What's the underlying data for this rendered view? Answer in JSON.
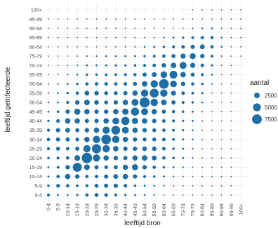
{
  "chart_data": {
    "type": "scatter",
    "title": "",
    "xlabel": "leeftijd bron",
    "ylabel": "leeftijd geïnfecteerde",
    "categories": [
      "0-4",
      "5-9",
      "10-14",
      "15-19",
      "20-24",
      "25-29",
      "30-34",
      "35-39",
      "40-44",
      "45-49",
      "50-54",
      "55-59",
      "60-64",
      "65-69",
      "70-74",
      "75-79",
      "80-84",
      "85-89",
      "90-94",
      "95-99",
      "100+"
    ],
    "grid": true,
    "legend": {
      "title": "aantal",
      "placement": "right",
      "entries": [
        {
          "label": "2500",
          "value": 2500
        },
        {
          "label": "5000",
          "value": 5000
        },
        {
          "label": "7500",
          "value": 7500
        }
      ]
    },
    "point_color": "#1f6fa5",
    "size_max_value": 9000,
    "matrix_note_omitted": false,
    "matrix": [
      [
        700,
        300,
        250,
        400,
        900,
        1300,
        1100,
        700,
        400,
        300,
        250,
        200,
        150,
        100,
        80,
        60,
        40,
        20,
        10,
        5,
        0
      ],
      [
        500,
        1100,
        900,
        600,
        700,
        1200,
        1400,
        1500,
        1100,
        500,
        300,
        250,
        200,
        150,
        100,
        70,
        50,
        20,
        10,
        5,
        0
      ],
      [
        300,
        900,
        2300,
        1600,
        900,
        1000,
        1400,
        1800,
        2300,
        1500,
        700,
        450,
        300,
        200,
        140,
        100,
        60,
        25,
        10,
        5,
        0
      ],
      [
        300,
        600,
        1600,
        6500,
        2600,
        1400,
        1100,
        1300,
        2200,
        3000,
        1600,
        900,
        500,
        300,
        200,
        150,
        90,
        40,
        15,
        5,
        0
      ],
      [
        500,
        700,
        900,
        2600,
        8500,
        4200,
        2300,
        1600,
        1400,
        2300,
        2500,
        1800,
        900,
        500,
        300,
        200,
        100,
        50,
        20,
        5,
        0
      ],
      [
        700,
        1200,
        1000,
        1400,
        4200,
        6800,
        4300,
        2300,
        1500,
        1500,
        1700,
        1600,
        1000,
        500,
        300,
        200,
        120,
        60,
        20,
        5,
        0
      ],
      [
        900,
        1400,
        1400,
        1100,
        2300,
        4300,
        7400,
        4300,
        2300,
        1500,
        1200,
        1200,
        1000,
        600,
        350,
        250,
        150,
        70,
        25,
        10,
        0
      ],
      [
        700,
        1500,
        1800,
        1300,
        1600,
        2300,
        4300,
        6100,
        3700,
        2300,
        1500,
        1200,
        900,
        600,
        400,
        250,
        150,
        70,
        25,
        10,
        0
      ],
      [
        400,
        1100,
        2300,
        2200,
        1400,
        1500,
        2300,
        3700,
        5400,
        3200,
        2300,
        1500,
        1000,
        700,
        400,
        300,
        160,
        80,
        30,
        10,
        0
      ],
      [
        300,
        500,
        1500,
        3000,
        2300,
        1500,
        1500,
        2300,
        3200,
        5200,
        3800,
        2300,
        1300,
        800,
        500,
        300,
        180,
        90,
        30,
        10,
        0
      ],
      [
        250,
        300,
        700,
        1600,
        2500,
        1700,
        1200,
        1500,
        2300,
        3800,
        8000,
        4300,
        2500,
        1400,
        700,
        450,
        250,
        110,
        40,
        10,
        0
      ],
      [
        200,
        250,
        450,
        900,
        1800,
        1600,
        1200,
        1200,
        1500,
        2300,
        4300,
        6300,
        4300,
        2000,
        1000,
        600,
        350,
        140,
        50,
        15,
        0
      ],
      [
        150,
        200,
        300,
        500,
        900,
        1000,
        1000,
        900,
        1000,
        1300,
        2500,
        4300,
        7500,
        3500,
        1600,
        900,
        500,
        200,
        60,
        15,
        0
      ],
      [
        100,
        150,
        200,
        300,
        500,
        500,
        600,
        600,
        700,
        800,
        1400,
        2000,
        3500,
        4800,
        2400,
        1300,
        700,
        280,
        80,
        20,
        0
      ],
      [
        80,
        100,
        140,
        200,
        300,
        300,
        350,
        400,
        400,
        500,
        700,
        1000,
        1600,
        2400,
        3900,
        2100,
        1000,
        400,
        120,
        25,
        0
      ],
      [
        60,
        70,
        100,
        150,
        200,
        200,
        250,
        250,
        300,
        300,
        450,
        600,
        900,
        1300,
        2100,
        2900,
        1500,
        600,
        180,
        35,
        5
      ],
      [
        40,
        50,
        60,
        90,
        100,
        120,
        150,
        150,
        160,
        180,
        250,
        350,
        500,
        700,
        1000,
        1500,
        1900,
        900,
        250,
        50,
        5
      ],
      [
        20,
        20,
        25,
        40,
        50,
        60,
        70,
        70,
        80,
        90,
        110,
        140,
        200,
        280,
        400,
        600,
        900,
        800,
        250,
        60,
        5
      ],
      [
        10,
        10,
        10,
        15,
        20,
        20,
        25,
        25,
        30,
        30,
        40,
        50,
        60,
        80,
        120,
        180,
        250,
        250,
        150,
        40,
        5
      ],
      [
        5,
        5,
        5,
        5,
        5,
        5,
        10,
        10,
        10,
        10,
        10,
        15,
        15,
        20,
        25,
        35,
        50,
        60,
        40,
        15,
        2
      ],
      [
        0,
        0,
        0,
        0,
        0,
        0,
        0,
        0,
        0,
        0,
        0,
        0,
        0,
        0,
        0,
        5,
        5,
        5,
        5,
        2,
        1
      ]
    ]
  }
}
